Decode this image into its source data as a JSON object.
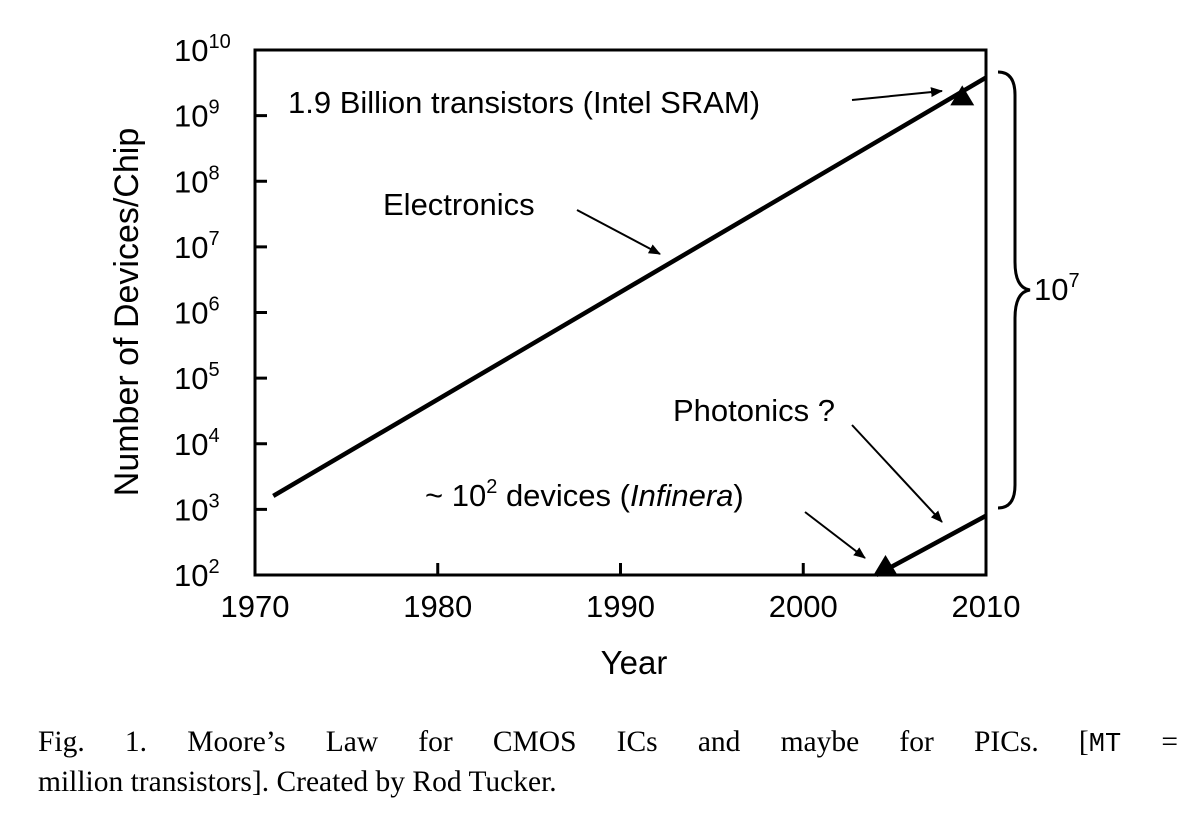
{
  "chart_data": {
    "type": "line",
    "xlabel": "Year",
    "ylabel": "Number of Devices/Chip",
    "xlim": [
      1970,
      2010
    ],
    "ylim_exponent": [
      2,
      10
    ],
    "y_scale": "log10",
    "x_ticks": [
      "1970",
      "1980",
      "1990",
      "2000",
      "2010"
    ],
    "y_ticks": [
      {
        "base": "10",
        "exp": "2"
      },
      {
        "base": "10",
        "exp": "3"
      },
      {
        "base": "10",
        "exp": "4"
      },
      {
        "base": "10",
        "exp": "5"
      },
      {
        "base": "10",
        "exp": "6"
      },
      {
        "base": "10",
        "exp": "7"
      },
      {
        "base": "10",
        "exp": "8"
      },
      {
        "base": "10",
        "exp": "9"
      },
      {
        "base": "10",
        "exp": "10"
      }
    ],
    "series": [
      {
        "x": [
          1971,
          2010
        ],
        "y": [
          1600,
          3800000000
        ]
      },
      {
        "x": [
          2004,
          2010
        ],
        "y": [
          100,
          800
        ]
      }
    ],
    "points": [
      {
        "x": 2008.7,
        "y": 1900000000
      },
      {
        "x": 2004.5,
        "y": 100
      }
    ],
    "annotations": {
      "sram": "1.9 Billion transistors (Intel SRAM)",
      "electronics": "Electronics",
      "photonics": "Photonics ?",
      "infinera_prefix": "~ 10",
      "infinera_exp": "2",
      "infinera_mid": " devices (",
      "infinera_italic": "Infinera",
      "infinera_suffix": ")",
      "brace_base": "10",
      "brace_exp": "7"
    }
  },
  "caption": {
    "line1_text": "Fig. 1. Moore’s Law for CMOS ICs and maybe for PICs. [",
    "line1_mono": "MT",
    "line1_eq": "=",
    "line2_text": "million transistors]. Created by Rod Tucker."
  }
}
